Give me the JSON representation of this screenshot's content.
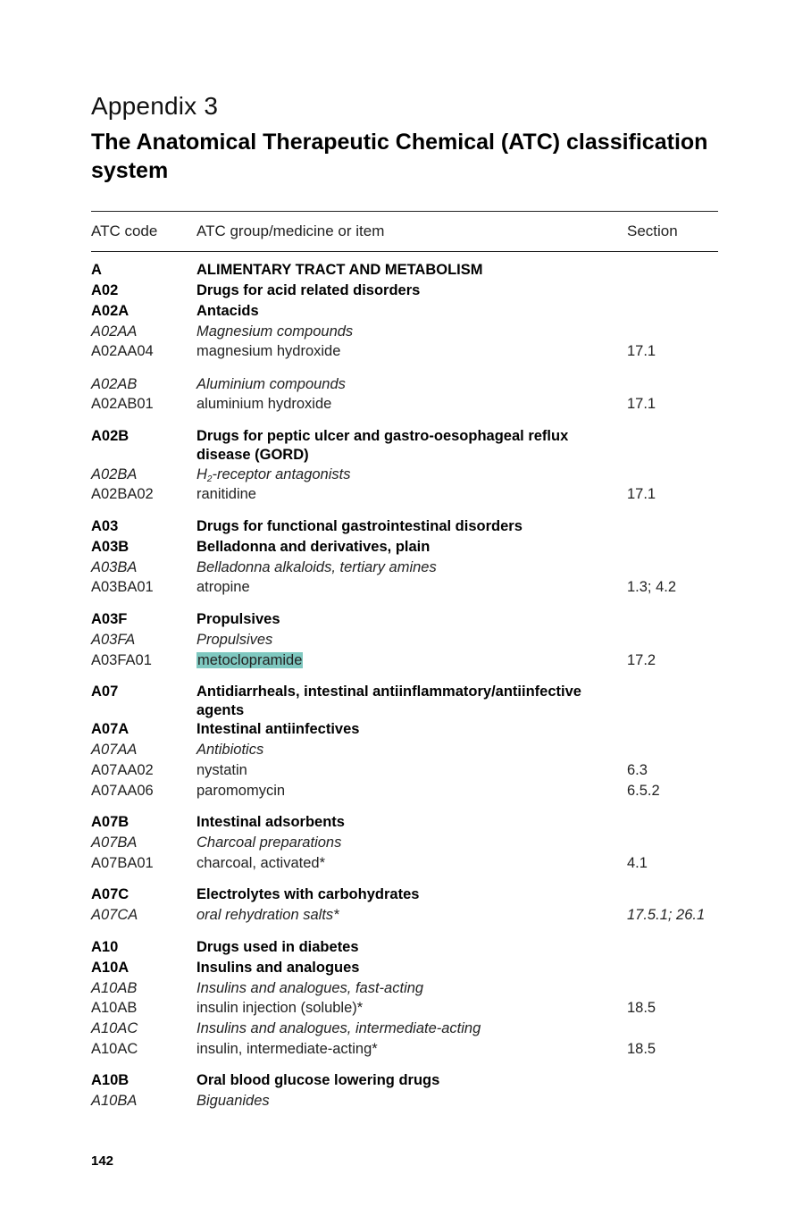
{
  "appendix_label": "Appendix 3",
  "title": "The Anatomical Therapeutic Chemical (ATC) classification system",
  "table": {
    "headers": {
      "code": "ATC code",
      "item": "ATC group/medicine or item",
      "section": "Section"
    },
    "rows": [
      {
        "code": "A",
        "item": "ALIMENTARY TRACT AND METABOLISM",
        "section": "",
        "style": "bold"
      },
      {
        "code": "A02",
        "item": "Drugs for acid related disorders",
        "section": "",
        "style": "bold"
      },
      {
        "code": "A02A",
        "item": "Antacids",
        "section": "",
        "style": "bold"
      },
      {
        "code": "A02AA",
        "item": "Magnesium compounds",
        "section": "",
        "style": "italic"
      },
      {
        "code": "A02AA04",
        "item": "magnesium hydroxide",
        "section": "17.1",
        "style": "plain"
      },
      {
        "code": "A02AB",
        "item": "Aluminium compounds",
        "section": "",
        "style": "italic"
      },
      {
        "code": "A02AB01",
        "item": "aluminium hydroxide",
        "section": "17.1",
        "style": "plain"
      },
      {
        "code": "A02B",
        "item": "Drugs for peptic ulcer and gastro-oesophageal reflux disease (GORD)",
        "section": "",
        "style": "bold"
      },
      {
        "code": "A02BA",
        "item_prefix": "H",
        "item_sub": "2",
        "item": "-receptor antagonists",
        "section": "",
        "style": "italic"
      },
      {
        "code": "A02BA02",
        "item": "ranitidine",
        "section": "17.1",
        "style": "plain"
      },
      {
        "code": "A03",
        "item": "Drugs for functional gastrointestinal disorders",
        "section": "",
        "style": "bold"
      },
      {
        "code": "A03B",
        "item": "Belladonna and derivatives, plain",
        "section": "",
        "style": "bold"
      },
      {
        "code": "A03BA",
        "item": "Belladonna alkaloids, tertiary amines",
        "section": "",
        "style": "italic"
      },
      {
        "code": "A03BA01",
        "item": "atropine",
        "section": "1.3; 4.2",
        "style": "plain"
      },
      {
        "code": "A03F",
        "item": "Propulsives",
        "section": "",
        "style": "bold"
      },
      {
        "code": "A03FA",
        "item": "Propulsives",
        "section": "",
        "style": "italic"
      },
      {
        "code": "A03FA01",
        "item": "metoclopramide",
        "section": "17.2",
        "style": "plain",
        "highlighted": true
      },
      {
        "code": "A07",
        "item": "Antidiarrheals, intestinal antiinflammatory/antiinfective agents",
        "section": "",
        "style": "bold"
      },
      {
        "code": "A07A",
        "item": "Intestinal antiinfectives",
        "section": "",
        "style": "bold"
      },
      {
        "code": "A07AA",
        "item": "Antibiotics",
        "section": "",
        "style": "italic"
      },
      {
        "code": "A07AA02",
        "item": "nystatin",
        "section": "6.3",
        "style": "plain"
      },
      {
        "code": "A07AA06",
        "item": "paromomycin",
        "section": "6.5.2",
        "style": "plain"
      },
      {
        "code": "A07B",
        "item": "Intestinal adsorbents",
        "section": "",
        "style": "bold"
      },
      {
        "code": "A07BA",
        "item": "Charcoal preparations",
        "section": "",
        "style": "italic"
      },
      {
        "code": "A07BA01",
        "item": "charcoal, activated*",
        "section": "4.1",
        "style": "plain"
      },
      {
        "code": "A07C",
        "item": "Electrolytes with carbohydrates",
        "section": "",
        "style": "bold"
      },
      {
        "code": "A07CA",
        "item": "oral rehydration salts*",
        "section": "17.5.1; 26.1",
        "style": "italic"
      },
      {
        "code": "A10",
        "item": "Drugs used in diabetes",
        "section": "",
        "style": "bold"
      },
      {
        "code": "A10A",
        "item": "Insulins and analogues",
        "section": "",
        "style": "bold"
      },
      {
        "code": "A10AB",
        "item": "Insulins and analogues, fast-acting",
        "section": "",
        "style": "italic"
      },
      {
        "code": "A10AB",
        "item": "insulin injection (soluble)*",
        "section": "18.5",
        "style": "plain"
      },
      {
        "code": "A10AC",
        "item": "Insulins and analogues, intermediate-acting",
        "section": "",
        "style": "italic"
      },
      {
        "code": "A10AC",
        "item": "insulin, intermediate-acting*",
        "section": "18.5",
        "style": "plain"
      },
      {
        "code": "A10B",
        "item": "Oral blood glucose lowering drugs",
        "section": "",
        "style": "bold"
      },
      {
        "code": "A10BA",
        "item": "Biguanides",
        "section": "",
        "style": "italic"
      }
    ]
  },
  "page_number": "142",
  "colors": {
    "highlight": "#7fc8c0",
    "text": "#111111",
    "rule": "#222222"
  }
}
